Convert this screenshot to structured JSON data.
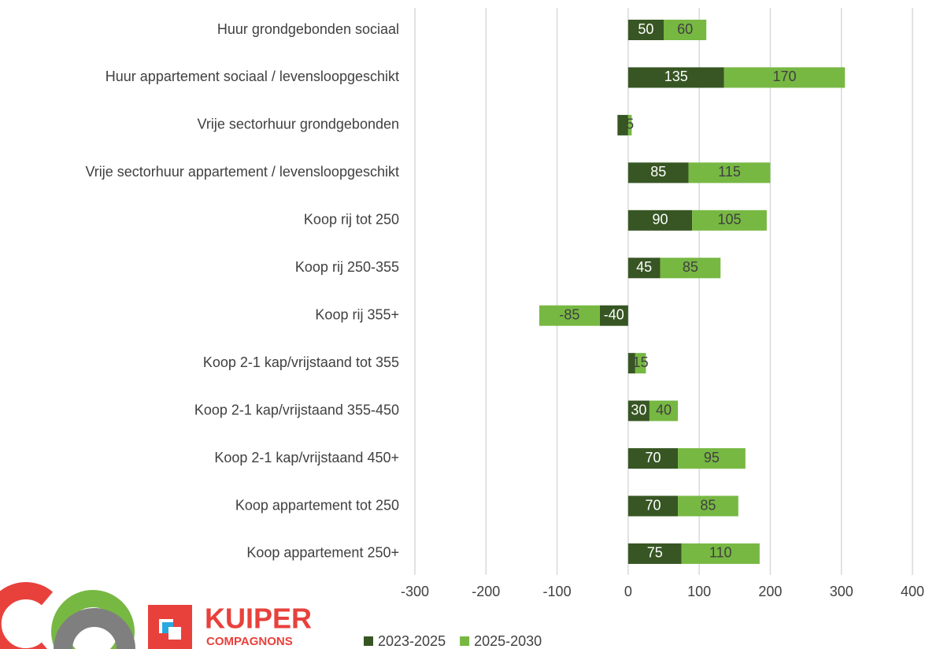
{
  "chart_data": {
    "type": "hbar_stacked",
    "categories": [
      "Huur grondgebonden sociaal",
      "Huur appartement sociaal / levensloopgeschikt",
      "Vrije sectorhuur grondgebonden",
      "Vrije sectorhuur appartement / levensloopgeschikt",
      "Koop rij tot 250",
      "Koop rij 250-355",
      "Koop rij 355+",
      "Koop 2-1 kap/vrijstaand tot 355",
      "Koop 2-1 kap/vrijstaand 355-450",
      "Koop 2-1 kap/vrijstaand 450+",
      "Koop appartement tot 250",
      "Koop appartement 250+"
    ],
    "series": [
      {
        "name": "2023-2025",
        "color": "#375623",
        "label_color": "#ffffff",
        "values": [
          50,
          135,
          -15,
          85,
          90,
          45,
          -40,
          10,
          30,
          70,
          70,
          75
        ],
        "value_labels": [
          "50",
          "135",
          null,
          "85",
          "90",
          "45",
          "-40",
          null,
          "30",
          "70",
          "70",
          "75"
        ]
      },
      {
        "name": "2025-2030",
        "color": "#77b843",
        "label_color": "#404040",
        "values": [
          60,
          170,
          5,
          115,
          105,
          85,
          -85,
          15,
          40,
          95,
          85,
          110
        ],
        "value_labels": [
          "60",
          "170",
          "5",
          "115",
          "105",
          "85",
          "-85",
          "15",
          "40",
          "95",
          "85",
          "110"
        ]
      }
    ],
    "xlim": [
      -300,
      400
    ],
    "xticks": [
      -300,
      -200,
      -100,
      0,
      100,
      200,
      300,
      400
    ],
    "grid": true,
    "legend": "bottom"
  },
  "logo": {
    "name": "KUIPER",
    "subtitle": "COMPAGNONS"
  }
}
